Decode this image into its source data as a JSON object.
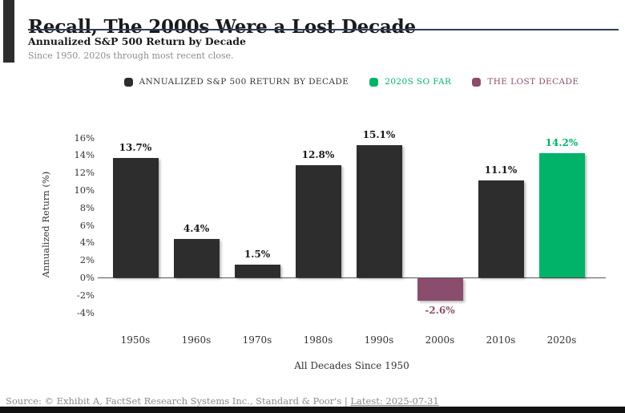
{
  "header": {
    "title": "Recall, The 2000s Were a Lost Decade",
    "subtitle": "Annualized S&P 500 Return by Decade",
    "note": "Since 1950. 2020s through most recent close."
  },
  "legend": {
    "items": [
      {
        "label": "ANNUALIZED S&P 500 RETURN BY DECADE",
        "color": "#2d2d2d"
      },
      {
        "label": "2020S SO FAR",
        "color": "#00b368"
      },
      {
        "label": "THE LOST DECADE",
        "color": "#8b4d6d"
      }
    ]
  },
  "chart_data": {
    "type": "bar",
    "categories": [
      "1950s",
      "1960s",
      "1970s",
      "1980s",
      "1990s",
      "2000s",
      "2010s",
      "2020s"
    ],
    "values": [
      13.7,
      4.4,
      1.5,
      12.8,
      15.1,
      -2.6,
      11.1,
      14.2
    ],
    "value_labels": [
      "13.7%",
      "4.4%",
      "1.5%",
      "12.8%",
      "15.1%",
      "-2.6%",
      "11.1%",
      "14.2%"
    ],
    "bar_colors": [
      "#2d2d2d",
      "#2d2d2d",
      "#2d2d2d",
      "#2d2d2d",
      "#2d2d2d",
      "#8b4d6d",
      "#2d2d2d",
      "#00b368"
    ],
    "label_colors": [
      "#1a1a1a",
      "#1a1a1a",
      "#1a1a1a",
      "#1a1a1a",
      "#1a1a1a",
      "#8b4d6d",
      "#1a1a1a",
      "#00b368"
    ],
    "title": "",
    "xlabel": "All Decades Since 1950",
    "ylabel": "Annualized Return (%)",
    "ylim": [
      -4,
      16
    ],
    "yticks": [
      16,
      14,
      12,
      10,
      8,
      6,
      4,
      2,
      0,
      -2,
      -4
    ],
    "ytick_labels": [
      "16%",
      "14%",
      "12%",
      "10%",
      "8%",
      "6%",
      "4%",
      "2%",
      "0%",
      "-2%",
      "-4%"
    ],
    "grid": false,
    "legend_position": "top"
  },
  "footer": {
    "source": "Source: © Exhibit A, FactSet Research Systems Inc., Standard & Poor's | ",
    "latest_link": "Latest: 2025-07-31"
  }
}
